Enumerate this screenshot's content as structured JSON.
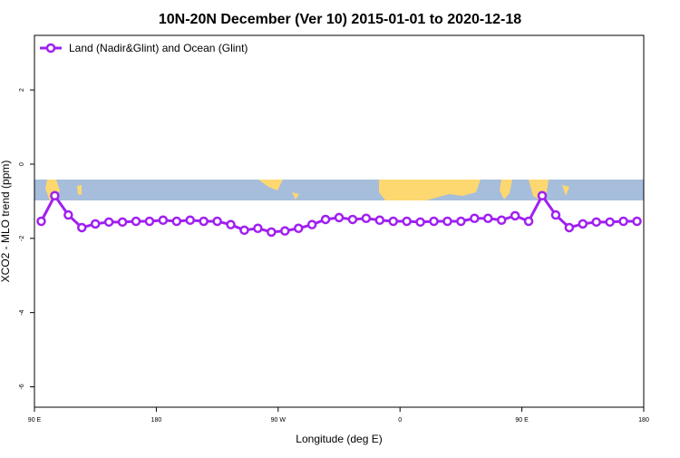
{
  "chart_data": {
    "type": "line",
    "title": "10N-20N December (Ver 10)   2015-01-01 to 2020-12-18",
    "xlabel": "Longitude (deg E)",
    "ylabel": "XCO2 - MLO trend (ppm)",
    "x": [
      95,
      105,
      115,
      125,
      135,
      145,
      155,
      165,
      175,
      185,
      195,
      205,
      215,
      225,
      235,
      245,
      255,
      265,
      275,
      285,
      295,
      305,
      315,
      325,
      335,
      345,
      355,
      365,
      375,
      385,
      395,
      405,
      415,
      425,
      435,
      445,
      455,
      465,
      475,
      485,
      495,
      505,
      515,
      525,
      535
    ],
    "series": [
      {
        "name": "Land (Nadir&Glint) and Ocean (Glint)",
        "color": "#a020f0",
        "values": [
          -1.54,
          -0.85,
          -1.37,
          -1.71,
          -1.61,
          -1.56,
          -1.56,
          -1.54,
          -1.54,
          -1.51,
          -1.54,
          -1.51,
          -1.54,
          -1.54,
          -1.63,
          -1.78,
          -1.73,
          -1.83,
          -1.8,
          -1.73,
          -1.63,
          -1.49,
          -1.44,
          -1.49,
          -1.46,
          -1.51,
          -1.54,
          -1.54,
          -1.56,
          -1.54,
          -1.54,
          -1.54,
          -1.46,
          -1.46,
          -1.51,
          -1.39,
          -1.54,
          -0.85,
          -1.37,
          -1.71,
          -1.61,
          -1.56,
          -1.56,
          -1.54,
          -1.54
        ]
      }
    ],
    "xlim": [
      90,
      540
    ],
    "xticks": [
      {
        "value": 90,
        "label": "90 E"
      },
      180,
      {
        "value": 270,
        "label": "90 W"
      },
      {
        "value": 360,
        "label": "0"
      },
      {
        "value": 450,
        "label": "90 E"
      },
      {
        "value": 540,
        "label": "180"
      }
    ],
    "ylim": [
      -6.55,
      3.47
    ],
    "yticks": [
      -6,
      -4,
      -2,
      0,
      2
    ],
    "legend": "top-left"
  }
}
